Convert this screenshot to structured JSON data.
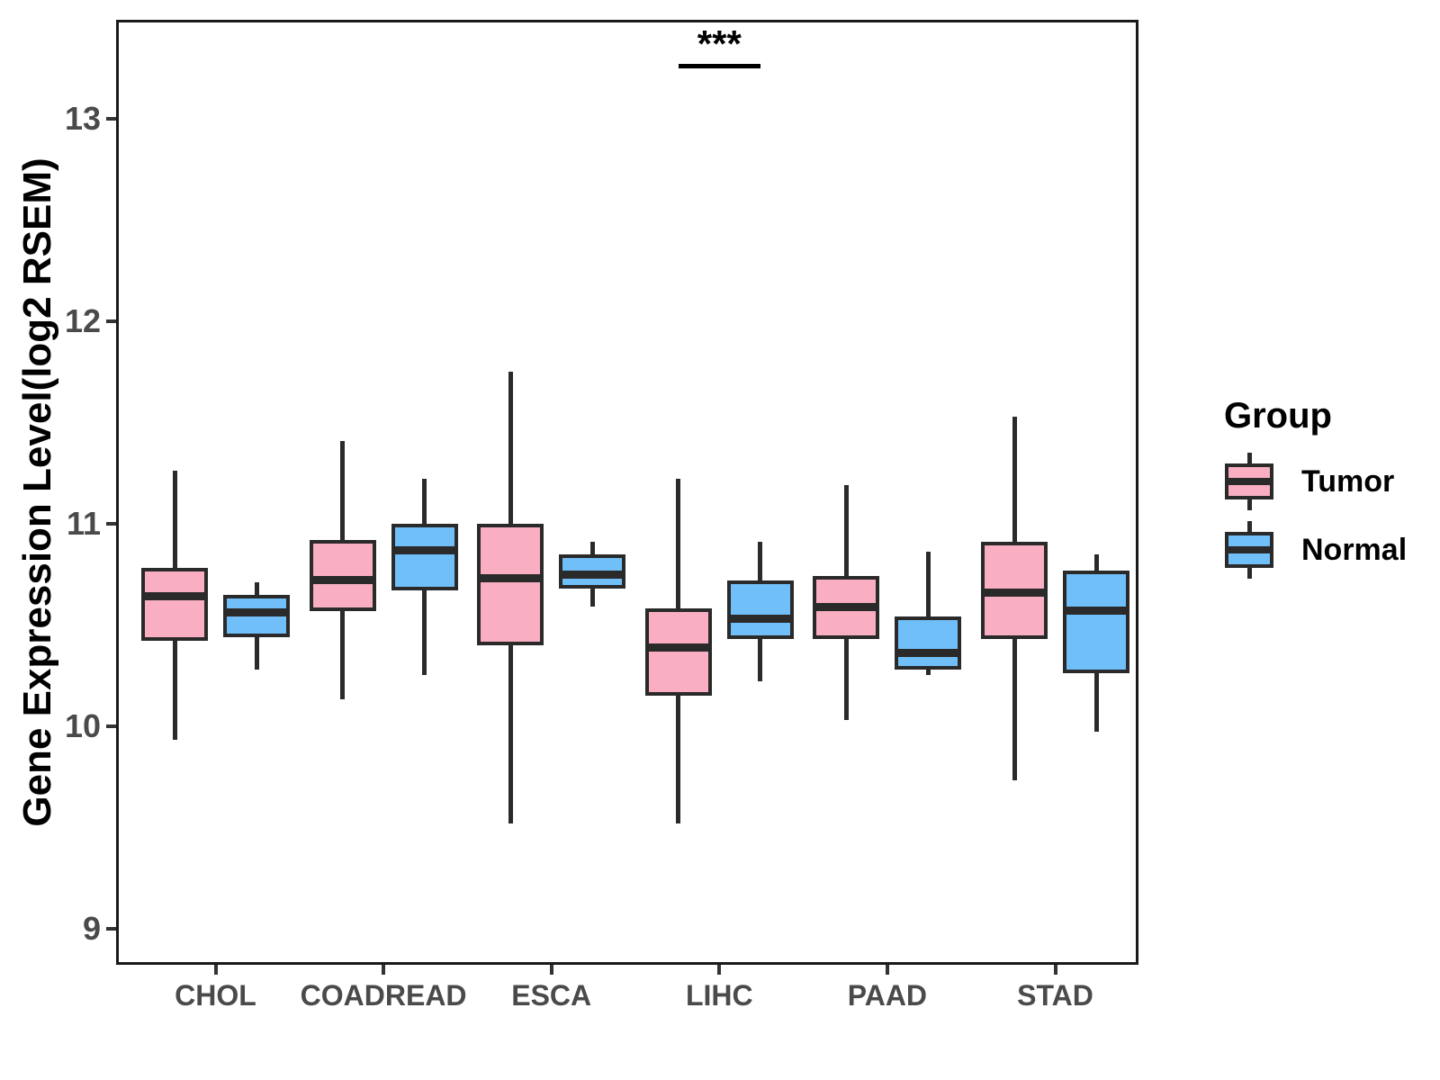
{
  "chart_data": {
    "type": "grouped_boxplot",
    "title": "",
    "xlabel": "",
    "ylabel": "Gene Expression Level(log2 RSEM)",
    "ylim": [
      8.82,
      13.49
    ],
    "yticks": [
      9,
      10,
      11,
      12,
      13
    ],
    "grid": false,
    "legend_position": "right",
    "legend_title": "Group",
    "categories": [
      "CHOL",
      "COADREAD",
      "ESCA",
      "LIHC",
      "PAAD",
      "STAD"
    ],
    "groups": [
      {
        "name": "Tumor",
        "color": "#F9AFC1",
        "boxes": [
          {
            "category": "CHOL",
            "whisker_low": 9.93,
            "q1": 10.42,
            "median": 10.64,
            "q3": 10.78,
            "whisker_high": 11.26
          },
          {
            "category": "COADREAD",
            "whisker_low": 10.13,
            "q1": 10.57,
            "median": 10.72,
            "q3": 10.92,
            "whisker_high": 11.41
          },
          {
            "category": "ESCA",
            "whisker_low": 9.52,
            "q1": 10.4,
            "median": 10.73,
            "q3": 11.0,
            "whisker_high": 11.75
          },
          {
            "category": "LIHC",
            "whisker_low": 9.52,
            "q1": 10.15,
            "median": 10.39,
            "q3": 10.58,
            "whisker_high": 11.22
          },
          {
            "category": "PAAD",
            "whisker_low": 10.03,
            "q1": 10.43,
            "median": 10.59,
            "q3": 10.74,
            "whisker_high": 11.19
          },
          {
            "category": "STAD",
            "whisker_low": 9.73,
            "q1": 10.43,
            "median": 10.66,
            "q3": 10.91,
            "whisker_high": 11.53
          }
        ]
      },
      {
        "name": "Normal",
        "color": "#70BFF8",
        "boxes": [
          {
            "category": "CHOL",
            "whisker_low": 10.28,
            "q1": 10.44,
            "median": 10.56,
            "q3": 10.65,
            "whisker_high": 10.71
          },
          {
            "category": "COADREAD",
            "whisker_low": 10.25,
            "q1": 10.67,
            "median": 10.87,
            "q3": 11.0,
            "whisker_high": 11.22
          },
          {
            "category": "ESCA",
            "whisker_low": 10.59,
            "q1": 10.68,
            "median": 10.75,
            "q3": 10.85,
            "whisker_high": 10.91
          },
          {
            "category": "LIHC",
            "whisker_low": 10.22,
            "q1": 10.43,
            "median": 10.53,
            "q3": 10.72,
            "whisker_high": 10.91
          },
          {
            "category": "PAAD",
            "whisker_low": 10.25,
            "q1": 10.28,
            "median": 10.36,
            "q3": 10.54,
            "whisker_high": 10.86
          },
          {
            "category": "STAD",
            "whisker_low": 9.97,
            "q1": 10.26,
            "median": 10.57,
            "q3": 10.77,
            "whisker_high": 10.85
          }
        ]
      }
    ],
    "annotations": [
      {
        "type": "significance",
        "category": "LIHC",
        "label": "***"
      }
    ]
  }
}
